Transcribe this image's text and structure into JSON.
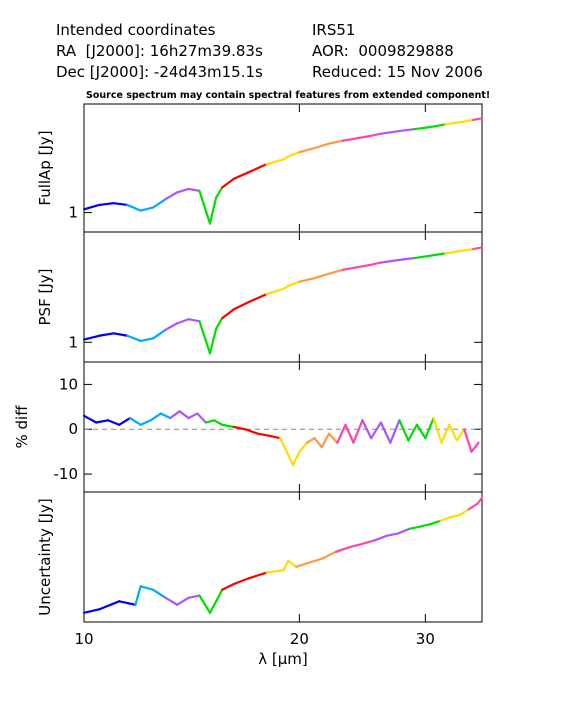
{
  "header": {
    "left": [
      "Intended coordinates",
      "RA  [J2000]: 16h27m39.83s",
      "Dec [J2000]: -24d43m15.1s"
    ],
    "right": [
      "IRS51",
      "AOR:  0009829888",
      "Reduced: 15 Nov 2006"
    ]
  },
  "note": "Source spectrum may contain spectral features from extended component!",
  "chart_data": [
    {
      "type": "line",
      "panel": "fullap",
      "ylabel": "FullAp [Jy]",
      "yscale": "log",
      "yticks": [
        {
          "value": 1,
          "label": "1"
        }
      ],
      "ylim": [
        0.75,
        5.0
      ],
      "x": [
        10.0,
        10.5,
        11.0,
        11.5,
        12.0,
        12.5,
        13.0,
        13.5,
        14.0,
        14.5,
        15.0,
        15.3,
        15.6,
        16.2,
        17.0,
        18.0,
        19.0,
        19.3,
        20.0,
        21.0,
        22.0,
        23.0,
        24.0,
        25.0,
        26.0,
        27.0,
        28.0,
        29.0,
        30.0,
        31.0,
        32.0,
        33.0,
        34.0,
        35.0,
        36.0
      ],
      "values": [
        1.05,
        1.12,
        1.15,
        1.12,
        1.03,
        1.08,
        1.22,
        1.35,
        1.42,
        1.38,
        0.85,
        1.25,
        1.45,
        1.65,
        1.82,
        2.05,
        2.2,
        2.3,
        2.45,
        2.6,
        2.78,
        2.9,
        3.0,
        3.1,
        3.22,
        3.3,
        3.38,
        3.45,
        3.52,
        3.6,
        3.7,
        3.78,
        3.85,
        3.95,
        4.05
      ]
    },
    {
      "type": "line",
      "panel": "psf",
      "ylabel": "PSF [Jy]",
      "yscale": "log",
      "yticks": [
        {
          "value": 1,
          "label": "1"
        }
      ],
      "ylim": [
        0.75,
        5.0
      ],
      "x": [
        10.0,
        10.5,
        11.0,
        11.5,
        12.0,
        12.5,
        13.0,
        13.5,
        14.0,
        14.5,
        15.0,
        15.3,
        15.6,
        16.2,
        17.0,
        18.0,
        19.0,
        19.3,
        20.0,
        21.0,
        22.0,
        23.0,
        24.0,
        25.0,
        26.0,
        27.0,
        28.0,
        29.0,
        30.0,
        31.0,
        32.0,
        33.0,
        34.0,
        35.0,
        36.0
      ],
      "values": [
        1.04,
        1.1,
        1.14,
        1.1,
        1.02,
        1.06,
        1.2,
        1.32,
        1.4,
        1.36,
        0.85,
        1.22,
        1.42,
        1.62,
        1.8,
        2.02,
        2.18,
        2.28,
        2.42,
        2.55,
        2.72,
        2.88,
        2.98,
        3.08,
        3.2,
        3.28,
        3.36,
        3.42,
        3.5,
        3.58,
        3.66,
        3.74,
        3.82,
        3.9,
        4.0
      ]
    },
    {
      "type": "line",
      "panel": "diff",
      "ylabel": "% diff",
      "yticks": [
        {
          "value": 10,
          "label": "10"
        },
        {
          "value": 0,
          "label": "0"
        },
        {
          "value": -10,
          "label": "-10"
        }
      ],
      "ylim": [
        -14,
        15
      ],
      "reference_line": 0,
      "x": [
        10.0,
        10.4,
        10.8,
        11.2,
        11.6,
        12.0,
        12.4,
        12.8,
        13.2,
        13.6,
        14.0,
        14.4,
        14.8,
        15.2,
        15.6,
        16.2,
        16.8,
        17.5,
        18.2,
        18.8,
        19.2,
        19.6,
        20.0,
        20.5,
        21.0,
        21.5,
        22.0,
        22.6,
        23.2,
        23.8,
        24.5,
        25.2,
        26.0,
        26.8,
        27.6,
        28.4,
        29.2,
        30.0,
        30.8,
        31.6,
        32.4,
        33.2,
        34.0,
        34.8,
        35.6
      ],
      "values": [
        3.0,
        1.5,
        2.0,
        1.0,
        2.5,
        1.0,
        2.0,
        3.5,
        2.5,
        4.0,
        2.5,
        3.5,
        1.5,
        2.0,
        1.0,
        0.5,
        0.0,
        -1.0,
        -1.5,
        -2.0,
        -5.0,
        -8.0,
        -5.0,
        -3.0,
        -2.0,
        -4.0,
        -1.0,
        -3.0,
        1.0,
        -3.0,
        2.0,
        -2.0,
        1.5,
        -3.0,
        2.0,
        -2.5,
        1.0,
        -2.0,
        2.5,
        -3.0,
        1.0,
        -2.5,
        0.0,
        -5.0,
        -3.0
      ]
    },
    {
      "type": "line",
      "panel": "uncertainty",
      "ylabel": "Uncertainty [Jy]",
      "xlabel": "λ [μm]",
      "xscale": "log",
      "xticks": [
        10,
        20,
        30
      ],
      "xlim": [
        10.0,
        36.0
      ],
      "x": [
        10.0,
        10.5,
        11.2,
        11.8,
        12.0,
        12.5,
        13.0,
        13.5,
        14.0,
        14.5,
        15.0,
        15.3,
        15.6,
        16.2,
        17.0,
        18.0,
        19.0,
        19.3,
        19.8,
        20.5,
        21.5,
        22.5,
        23.5,
        24.5,
        25.5,
        26.5,
        27.5,
        28.5,
        29.5,
        30.5,
        31.5,
        32.5,
        33.5,
        34.5,
        35.5,
        36.0
      ],
      "values": [
        0.05,
        0.08,
        0.15,
        0.12,
        0.28,
        0.25,
        0.18,
        0.12,
        0.18,
        0.2,
        0.05,
        0.15,
        0.25,
        0.3,
        0.35,
        0.4,
        0.42,
        0.5,
        0.45,
        0.48,
        0.52,
        0.58,
        0.62,
        0.65,
        0.68,
        0.72,
        0.74,
        0.78,
        0.8,
        0.82,
        0.85,
        0.88,
        0.9,
        0.95,
        1.0,
        1.05
      ]
    }
  ]
}
